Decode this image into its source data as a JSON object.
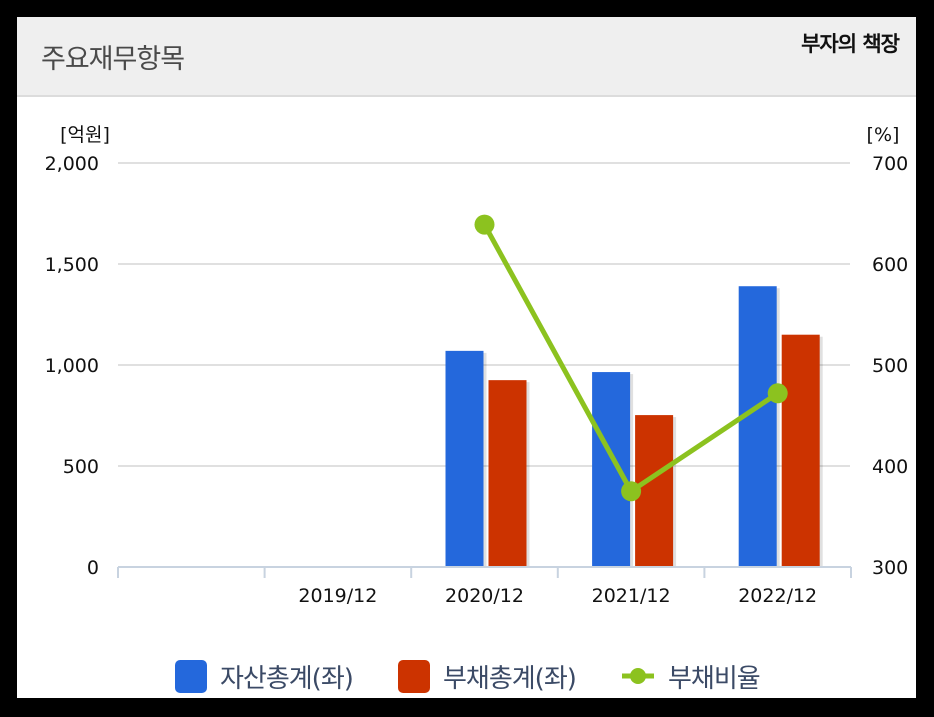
{
  "header": {
    "title": "주요재무항목",
    "brand": "부자의 책장"
  },
  "colors": {
    "assets": "#2468dc",
    "liabilities": "#cc3300",
    "ratio": "#8cc21f",
    "grid": "#e0e0e0",
    "axis": "#c8d3e0",
    "legend_text": "#3b4a66"
  },
  "chart_data": {
    "type": "bar",
    "title": "주요재무항목",
    "categories": [
      "",
      "2019/12",
      "2020/12",
      "2021/12",
      "2022/12"
    ],
    "series": [
      {
        "name": "자산총계(좌)",
        "type": "bar",
        "axis": "left",
        "values": [
          null,
          null,
          1070,
          965,
          1390
        ]
      },
      {
        "name": "부채총계(좌)",
        "type": "bar",
        "axis": "left",
        "values": [
          null,
          null,
          925,
          752,
          1150
        ]
      },
      {
        "name": "부채비율",
        "type": "line",
        "axis": "right",
        "values": [
          null,
          null,
          639,
          375,
          472
        ]
      }
    ],
    "left_axis": {
      "label": "[억원]",
      "ylim": [
        0,
        2000
      ],
      "ticks": [
        "0",
        "500",
        "1,000",
        "1,500",
        "2,000"
      ]
    },
    "right_axis": {
      "label": "[%]",
      "ylim": [
        300,
        700
      ],
      "ticks": [
        "300",
        "400",
        "500",
        "600",
        "700"
      ]
    },
    "grid": true,
    "legend_position": "bottom"
  },
  "legend": [
    {
      "label": "자산총계(좌)",
      "marker": "square",
      "color": "#2468dc"
    },
    {
      "label": "부채총계(좌)",
      "marker": "square",
      "color": "#cc3300"
    },
    {
      "label": "부채비율",
      "marker": "line-dot",
      "color": "#8cc21f"
    }
  ]
}
